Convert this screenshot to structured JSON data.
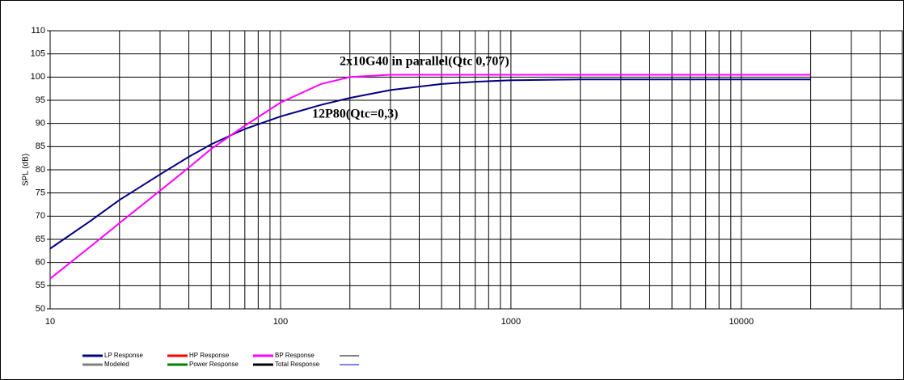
{
  "chart_data": {
    "type": "line",
    "y_label": "SPL (dB)",
    "annotations": [
      "2x10G40 in parallel(Qtc 0,707)",
      "12P80(Qtc=0,3)"
    ],
    "x": [
      10,
      15,
      20,
      30,
      40,
      50,
      70,
      100,
      150,
      200,
      300,
      500,
      700,
      1000,
      2000,
      5000,
      10000,
      20000
    ],
    "series": [
      {
        "name": "LP Response",
        "color": "#000080",
        "values": [
          63,
          69,
          73.5,
          79,
          82.8,
          85.5,
          88.8,
          91.5,
          94,
          95.5,
          97.2,
          98.5,
          99,
          99.3,
          99.5,
          99.5,
          99.5,
          99.5
        ]
      },
      {
        "name": "HP Response",
        "color": "#ff0000",
        "values": [
          null,
          null,
          null,
          null,
          null,
          null,
          null,
          null,
          null,
          null,
          null,
          null,
          null,
          null,
          null,
          null,
          null,
          null
        ]
      },
      {
        "name": "BP Response",
        "color": "#ff00ff",
        "values": [
          56.5,
          63.5,
          68.5,
          75.5,
          80.5,
          84.5,
          89.5,
          94.5,
          98.5,
          100,
          100.5,
          100.5,
          100.5,
          100.5,
          100.5,
          100.5,
          100.5,
          100.5
        ]
      },
      {
        "name": "Modeled",
        "color": "#808080",
        "values": [
          null,
          null,
          null,
          null,
          null,
          null,
          null,
          null,
          null,
          null,
          null,
          null,
          null,
          null,
          null,
          null,
          null,
          null
        ]
      },
      {
        "name": "Power Response",
        "color": "#008000",
        "values": [
          null,
          null,
          null,
          null,
          null,
          null,
          null,
          null,
          null,
          null,
          null,
          null,
          null,
          null,
          null,
          null,
          null,
          null
        ]
      },
      {
        "name": "Total Response",
        "color": "#000000",
        "values": [
          null,
          null,
          null,
          null,
          null,
          null,
          null,
          null,
          null,
          null,
          null,
          null,
          null,
          null,
          null,
          null,
          null,
          null
        ]
      }
    ],
    "log_x": true,
    "xlim": [
      10,
      50000
    ],
    "xticks": [
      10,
      100,
      1000,
      10000
    ],
    "xgrid": [
      20,
      30,
      40,
      50,
      60,
      70,
      80,
      90,
      200,
      300,
      400,
      500,
      600,
      700,
      800,
      900,
      2000,
      3000,
      4000,
      5000,
      6000,
      7000,
      8000,
      9000,
      20000,
      30000,
      40000
    ],
    "ylim": [
      50,
      110
    ],
    "yticks": [
      50,
      55,
      60,
      65,
      70,
      75,
      80,
      85,
      90,
      95,
      100,
      105,
      110
    ],
    "grid": true
  }
}
